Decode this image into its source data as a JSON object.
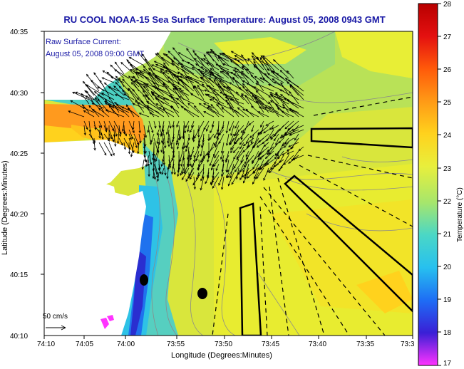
{
  "title": "RU COOL  NOAA-15  Sea Surface Temperature:  August 05, 2008 0943 GMT",
  "map": {
    "overlay_label_line1": "Raw Surface Current:",
    "overlay_label_line2": "August 05, 2008 09:00 GMT",
    "scale_label": "50 cm/s",
    "xlabel": "Longitude (Degrees:Minutes)",
    "ylabel": "Latitude (Degrees:Minutes)",
    "x_ticks": [
      "74:10",
      "74:05",
      "74:00",
      "73:55",
      "73:50",
      "73:45",
      "73:40",
      "73:35",
      "73:3"
    ],
    "y_ticks": [
      "40:35",
      "40:30",
      "40:25",
      "40:20",
      "40:15",
      "40:10"
    ]
  },
  "colorbar": {
    "label": "Temperature (°C)",
    "ticks": [
      "28",
      "27",
      "26",
      "25",
      "24",
      "23",
      "22",
      "21",
      "20",
      "19",
      "18",
      "17"
    ],
    "range": [
      17,
      28
    ],
    "colors": [
      "#ff33ff",
      "#3a1fd6",
      "#1e6df5",
      "#27c0ef",
      "#4ad7c6",
      "#a6e66c",
      "#e8ef3c",
      "#ffd21d",
      "#ff9a16",
      "#ff5a0a",
      "#e41010",
      "#b80000"
    ]
  },
  "colors": {
    "land": "#ffffff",
    "sea_warm": "#dde83a",
    "sea_mid": "#a6e06a",
    "sea_cool": "#3cc8d8",
    "sea_cold": "#1f68e8",
    "hot_spot": "#ff9a1e",
    "title": "#1a1aa6"
  }
}
